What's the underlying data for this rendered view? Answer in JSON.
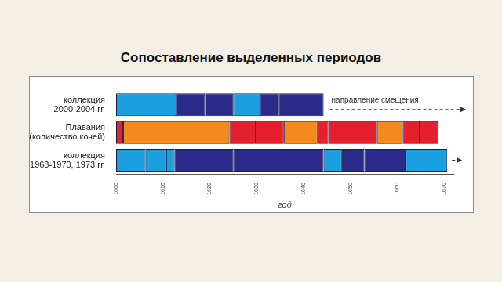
{
  "chart_data": {
    "type": "bar",
    "orientation": "horizontal",
    "title": "Сопоставление выделенных периодов",
    "xlabel": "год",
    "categories": [
      [
        "коллекция",
        "2000-2004 гг."
      ],
      [
        "Плавания",
        "(количество кочей)"
      ],
      [
        "коллекция",
        "1968-1970, 1973 гг."
      ]
    ],
    "values": [
      [
        [
          1600,
          1612.8
        ],
        [
          1612.8,
          1619
        ],
        [
          1619,
          1625
        ],
        [
          1625,
          1630.7
        ],
        [
          1630.7,
          1634.7
        ],
        [
          1634.7,
          1644.3
        ]
      ],
      [
        [
          1600,
          1601.5
        ],
        [
          1601.5,
          1624.2
        ],
        [
          1624.2,
          1629.8
        ],
        [
          1629.8,
          1635.8
        ],
        [
          1635.8,
          1643
        ],
        [
          1643,
          1645.3
        ],
        [
          1645.3,
          1655.7
        ],
        [
          1655.7,
          1661.2
        ],
        [
          1661.2,
          1664.8
        ],
        [
          1664.8,
          1668.7
        ]
      ],
      [
        [
          1600,
          1606.3
        ],
        [
          1606.3,
          1610.7
        ],
        [
          1610.7,
          1612.5
        ],
        [
          1612.5,
          1625
        ],
        [
          1625,
          1644.3
        ],
        [
          1644.3,
          1648.2
        ],
        [
          1648.2,
          1653
        ],
        [
          1653,
          1661.8
        ],
        [
          1661.8,
          1670.7
        ]
      ]
    ],
    "colors": [
      [
        "#1a9fe0",
        "#2a2a8a",
        "#2a2a8a",
        "#1a9fe0",
        "#2a2a8a",
        "#2a2a8a"
      ],
      [
        "#e3202b",
        "#f28a1e",
        "#e3202b",
        "#e3202b",
        "#f28a1e",
        "#e3202b",
        "#e3202b",
        "#f28a1e",
        "#e3202b",
        "#e3202b"
      ],
      [
        "#1a9fe0",
        "#1a9fe0",
        "#1a9fe0",
        "#2a2a8a",
        "#2a2a8a",
        "#1a9fe0",
        "#2a2a8a",
        "#2a2a8a",
        "#1a9fe0"
      ]
    ],
    "xlim": [
      1600,
      1672
    ],
    "xticks": [
      1600,
      1610,
      1620,
      1630,
      1640,
      1650,
      1660,
      1670
    ],
    "annotations": [
      {
        "text": "направление смещения",
        "category": 0
      }
    ],
    "grid": false
  }
}
